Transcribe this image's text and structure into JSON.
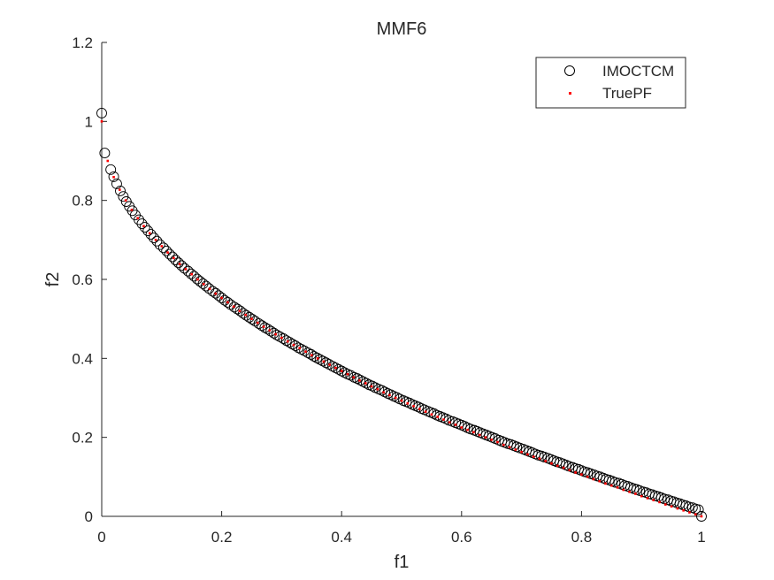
{
  "chart_data": {
    "type": "scatter",
    "title": "MMF6",
    "xlabel": "f1",
    "ylabel": "f2",
    "xlim": [
      0,
      1
    ],
    "ylim": [
      0,
      1.2
    ],
    "xticks": [
      0,
      0.2,
      0.4,
      0.6,
      0.8,
      1
    ],
    "xtick_labels": [
      "0",
      "0.2",
      "0.4",
      "0.6",
      "0.8",
      "1"
    ],
    "yticks": [
      0,
      0.2,
      0.4,
      0.6,
      0.8,
      1.0,
      1.2
    ],
    "ytick_labels": [
      "0",
      "0.2",
      "0.4",
      "0.6",
      "0.8",
      "1",
      "1.2"
    ],
    "grid": false,
    "legend_position": "top-right",
    "series": [
      {
        "name": "IMOCTCM",
        "marker": "open-circle",
        "color": "#000000",
        "points": [
          [
            0.0,
            1.021
          ],
          [
            0.005,
            0.92
          ],
          [
            0.015,
            0.878
          ],
          [
            0.02,
            0.86
          ],
          [
            0.025,
            0.842
          ],
          [
            0.031,
            0.824
          ],
          [
            0.036,
            0.81
          ],
          [
            0.041,
            0.797
          ],
          [
            0.046,
            0.785
          ],
          [
            0.051,
            0.774
          ],
          [
            0.056,
            0.763
          ],
          [
            0.062,
            0.751
          ],
          [
            0.067,
            0.741
          ],
          [
            0.072,
            0.732
          ],
          [
            0.077,
            0.723
          ],
          [
            0.082,
            0.714
          ],
          [
            0.087,
            0.705
          ],
          [
            0.092,
            0.697
          ],
          [
            0.097,
            0.688
          ],
          [
            0.103,
            0.68
          ],
          [
            0.108,
            0.672
          ],
          [
            0.113,
            0.664
          ],
          [
            0.118,
            0.657
          ],
          [
            0.123,
            0.649
          ],
          [
            0.128,
            0.642
          ],
          [
            0.133,
            0.635
          ],
          [
            0.138,
            0.628
          ],
          [
            0.144,
            0.621
          ],
          [
            0.149,
            0.614
          ],
          [
            0.154,
            0.608
          ],
          [
            0.159,
            0.601
          ],
          [
            0.164,
            0.595
          ],
          [
            0.169,
            0.589
          ],
          [
            0.174,
            0.583
          ],
          [
            0.179,
            0.577
          ],
          [
            0.185,
            0.57
          ],
          [
            0.19,
            0.565
          ],
          [
            0.195,
            0.559
          ],
          [
            0.2,
            0.553
          ],
          [
            0.205,
            0.547
          ],
          [
            0.21,
            0.542
          ],
          [
            0.215,
            0.536
          ],
          [
            0.221,
            0.53
          ],
          [
            0.226,
            0.525
          ],
          [
            0.231,
            0.52
          ],
          [
            0.236,
            0.514
          ],
          [
            0.241,
            0.509
          ],
          [
            0.246,
            0.504
          ],
          [
            0.251,
            0.499
          ],
          [
            0.256,
            0.494
          ],
          [
            0.262,
            0.488
          ],
          [
            0.267,
            0.483
          ],
          [
            0.272,
            0.478
          ],
          [
            0.277,
            0.474
          ],
          [
            0.282,
            0.469
          ],
          [
            0.287,
            0.464
          ],
          [
            0.292,
            0.459
          ],
          [
            0.297,
            0.455
          ],
          [
            0.303,
            0.45
          ],
          [
            0.308,
            0.445
          ],
          [
            0.313,
            0.441
          ],
          [
            0.318,
            0.436
          ],
          [
            0.323,
            0.432
          ],
          [
            0.328,
            0.427
          ],
          [
            0.333,
            0.423
          ],
          [
            0.338,
            0.419
          ],
          [
            0.344,
            0.414
          ],
          [
            0.349,
            0.41
          ],
          [
            0.354,
            0.405
          ],
          [
            0.359,
            0.401
          ],
          [
            0.364,
            0.397
          ],
          [
            0.369,
            0.393
          ],
          [
            0.374,
            0.389
          ],
          [
            0.379,
            0.385
          ],
          [
            0.385,
            0.38
          ],
          [
            0.39,
            0.376
          ],
          [
            0.395,
            0.372
          ],
          [
            0.4,
            0.368
          ],
          [
            0.405,
            0.364
          ],
          [
            0.41,
            0.36
          ],
          [
            0.415,
            0.357
          ],
          [
            0.421,
            0.352
          ],
          [
            0.426,
            0.349
          ],
          [
            0.431,
            0.345
          ],
          [
            0.436,
            0.341
          ],
          [
            0.441,
            0.337
          ],
          [
            0.446,
            0.333
          ],
          [
            0.451,
            0.33
          ],
          [
            0.456,
            0.326
          ],
          [
            0.462,
            0.322
          ],
          [
            0.467,
            0.319
          ],
          [
            0.472,
            0.315
          ],
          [
            0.477,
            0.311
          ],
          [
            0.482,
            0.308
          ],
          [
            0.487,
            0.304
          ],
          [
            0.492,
            0.301
          ],
          [
            0.497,
            0.297
          ],
          [
            0.503,
            0.293
          ],
          [
            0.508,
            0.29
          ],
          [
            0.513,
            0.287
          ],
          [
            0.518,
            0.283
          ],
          [
            0.523,
            0.28
          ],
          [
            0.528,
            0.277
          ],
          [
            0.533,
            0.273
          ],
          [
            0.538,
            0.27
          ],
          [
            0.544,
            0.266
          ],
          [
            0.549,
            0.263
          ],
          [
            0.554,
            0.26
          ],
          [
            0.559,
            0.256
          ],
          [
            0.564,
            0.253
          ],
          [
            0.569,
            0.25
          ],
          [
            0.574,
            0.247
          ],
          [
            0.579,
            0.243
          ],
          [
            0.585,
            0.24
          ],
          [
            0.59,
            0.237
          ],
          [
            0.595,
            0.234
          ],
          [
            0.6,
            0.231
          ],
          [
            0.605,
            0.228
          ],
          [
            0.61,
            0.224
          ],
          [
            0.615,
            0.221
          ],
          [
            0.621,
            0.218
          ],
          [
            0.626,
            0.215
          ],
          [
            0.631,
            0.212
          ],
          [
            0.636,
            0.209
          ],
          [
            0.641,
            0.206
          ],
          [
            0.646,
            0.203
          ],
          [
            0.651,
            0.2
          ],
          [
            0.656,
            0.197
          ],
          [
            0.662,
            0.193
          ],
          [
            0.667,
            0.19
          ],
          [
            0.672,
            0.187
          ],
          [
            0.677,
            0.184
          ],
          [
            0.682,
            0.182
          ],
          [
            0.687,
            0.179
          ],
          [
            0.692,
            0.176
          ],
          [
            0.697,
            0.173
          ],
          [
            0.703,
            0.17
          ],
          [
            0.708,
            0.167
          ],
          [
            0.713,
            0.164
          ],
          [
            0.718,
            0.161
          ],
          [
            0.723,
            0.158
          ],
          [
            0.728,
            0.155
          ],
          [
            0.733,
            0.153
          ],
          [
            0.738,
            0.15
          ],
          [
            0.744,
            0.147
          ],
          [
            0.749,
            0.144
          ],
          [
            0.754,
            0.141
          ],
          [
            0.759,
            0.138
          ],
          [
            0.764,
            0.136
          ],
          [
            0.769,
            0.133
          ],
          [
            0.774,
            0.13
          ],
          [
            0.779,
            0.127
          ],
          [
            0.785,
            0.124
          ],
          [
            0.79,
            0.121
          ],
          [
            0.795,
            0.119
          ],
          [
            0.8,
            0.116
          ],
          [
            0.805,
            0.113
          ],
          [
            0.81,
            0.111
          ],
          [
            0.815,
            0.108
          ],
          [
            0.821,
            0.105
          ],
          [
            0.826,
            0.102
          ],
          [
            0.831,
            0.1
          ],
          [
            0.836,
            0.097
          ],
          [
            0.841,
            0.094
          ],
          [
            0.846,
            0.092
          ],
          [
            0.851,
            0.089
          ],
          [
            0.856,
            0.086
          ],
          [
            0.862,
            0.084
          ],
          [
            0.867,
            0.081
          ],
          [
            0.872,
            0.078
          ],
          [
            0.877,
            0.076
          ],
          [
            0.882,
            0.073
          ],
          [
            0.887,
            0.07
          ],
          [
            0.892,
            0.068
          ],
          [
            0.897,
            0.065
          ],
          [
            0.903,
            0.062
          ],
          [
            0.908,
            0.06
          ],
          [
            0.913,
            0.057
          ],
          [
            0.918,
            0.055
          ],
          [
            0.923,
            0.052
          ],
          [
            0.928,
            0.05
          ],
          [
            0.933,
            0.047
          ],
          [
            0.938,
            0.044
          ],
          [
            0.944,
            0.042
          ],
          [
            0.949,
            0.039
          ],
          [
            0.954,
            0.037
          ],
          [
            0.959,
            0.034
          ],
          [
            0.964,
            0.032
          ],
          [
            0.969,
            0.029
          ],
          [
            0.974,
            0.027
          ],
          [
            0.979,
            0.024
          ],
          [
            0.985,
            0.022
          ],
          [
            0.99,
            0.019
          ],
          [
            0.995,
            0.017
          ],
          [
            1.0,
            0.0
          ]
        ]
      },
      {
        "name": "TruePF",
        "marker": "dot",
        "color": "#ff0000",
        "points": [
          [
            0.0,
            1.0
          ],
          [
            0.01,
            0.9
          ],
          [
            0.02,
            0.859
          ],
          [
            0.03,
            0.827
          ],
          [
            0.04,
            0.8
          ],
          [
            0.05,
            0.776
          ],
          [
            0.06,
            0.755
          ],
          [
            0.07,
            0.735
          ],
          [
            0.08,
            0.717
          ],
          [
            0.09,
            0.7
          ],
          [
            0.1,
            0.684
          ],
          [
            0.11,
            0.668
          ],
          [
            0.12,
            0.654
          ],
          [
            0.13,
            0.639
          ],
          [
            0.14,
            0.626
          ],
          [
            0.15,
            0.613
          ],
          [
            0.16,
            0.6
          ],
          [
            0.17,
            0.588
          ],
          [
            0.18,
            0.576
          ],
          [
            0.19,
            0.564
          ],
          [
            0.2,
            0.553
          ],
          [
            0.21,
            0.542
          ],
          [
            0.22,
            0.531
          ],
          [
            0.23,
            0.52
          ],
          [
            0.24,
            0.51
          ],
          [
            0.25,
            0.5
          ],
          [
            0.26,
            0.49
          ],
          [
            0.27,
            0.48
          ],
          [
            0.28,
            0.471
          ],
          [
            0.29,
            0.461
          ],
          [
            0.3,
            0.452
          ],
          [
            0.31,
            0.443
          ],
          [
            0.32,
            0.434
          ],
          [
            0.33,
            0.426
          ],
          [
            0.34,
            0.417
          ],
          [
            0.35,
            0.408
          ],
          [
            0.36,
            0.4
          ],
          [
            0.37,
            0.392
          ],
          [
            0.38,
            0.384
          ],
          [
            0.39,
            0.376
          ],
          [
            0.4,
            0.368
          ],
          [
            0.41,
            0.36
          ],
          [
            0.42,
            0.352
          ],
          [
            0.43,
            0.344
          ],
          [
            0.44,
            0.337
          ],
          [
            0.45,
            0.329
          ],
          [
            0.46,
            0.322
          ],
          [
            0.47,
            0.314
          ],
          [
            0.48,
            0.307
          ],
          [
            0.49,
            0.3
          ],
          [
            0.5,
            0.293
          ],
          [
            0.51,
            0.286
          ],
          [
            0.52,
            0.279
          ],
          [
            0.53,
            0.272
          ],
          [
            0.54,
            0.265
          ],
          [
            0.55,
            0.258
          ],
          [
            0.56,
            0.252
          ],
          [
            0.57,
            0.245
          ],
          [
            0.58,
            0.238
          ],
          [
            0.59,
            0.232
          ],
          [
            0.6,
            0.225
          ],
          [
            0.61,
            0.219
          ],
          [
            0.62,
            0.213
          ],
          [
            0.63,
            0.206
          ],
          [
            0.64,
            0.2
          ],
          [
            0.65,
            0.194
          ],
          [
            0.66,
            0.188
          ],
          [
            0.67,
            0.181
          ],
          [
            0.68,
            0.175
          ],
          [
            0.69,
            0.169
          ],
          [
            0.7,
            0.163
          ],
          [
            0.71,
            0.157
          ],
          [
            0.72,
            0.151
          ],
          [
            0.73,
            0.146
          ],
          [
            0.74,
            0.14
          ],
          [
            0.75,
            0.134
          ],
          [
            0.76,
            0.128
          ],
          [
            0.77,
            0.123
          ],
          [
            0.78,
            0.117
          ],
          [
            0.79,
            0.111
          ],
          [
            0.8,
            0.106
          ],
          [
            0.81,
            0.1
          ],
          [
            0.82,
            0.094
          ],
          [
            0.83,
            0.089
          ],
          [
            0.84,
            0.083
          ],
          [
            0.85,
            0.078
          ],
          [
            0.86,
            0.073
          ],
          [
            0.87,
            0.067
          ],
          [
            0.88,
            0.062
          ],
          [
            0.89,
            0.057
          ],
          [
            0.9,
            0.051
          ],
          [
            0.91,
            0.046
          ],
          [
            0.92,
            0.041
          ],
          [
            0.93,
            0.036
          ],
          [
            0.94,
            0.03
          ],
          [
            0.95,
            0.025
          ],
          [
            0.96,
            0.02
          ],
          [
            0.97,
            0.015
          ],
          [
            0.98,
            0.01
          ],
          [
            0.99,
            0.005
          ],
          [
            1.0,
            0.0
          ]
        ]
      }
    ]
  }
}
